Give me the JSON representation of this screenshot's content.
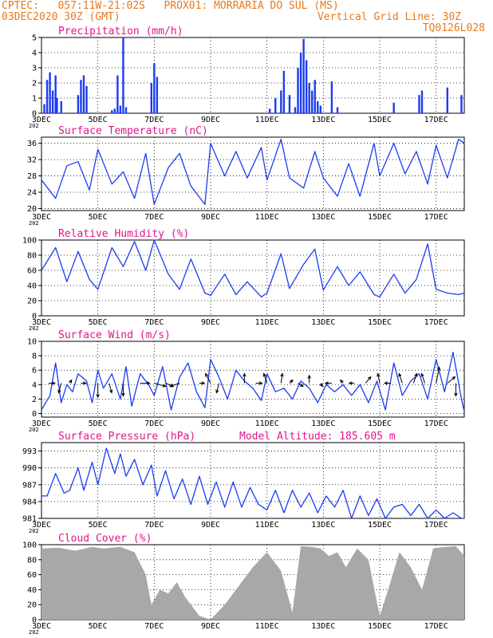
{
  "header": {
    "line1": "CPTEC:   057:11W-21:02S   PROX01: MORRARIA DO SUL (MS)",
    "line2_left": "03DEC2020 30Z (GMT)",
    "line2_right": "Vertical Grid Line: 30Z",
    "line3_right": "TQ0126L028"
  },
  "colors": {
    "header": "#e8791b",
    "title": "#e0158c",
    "series": "#1c3cf0",
    "cloud": "#a8a8a8",
    "arrow": "#000000"
  },
  "x_axis": {
    "tick_labels": [
      "3DEC",
      "5DEC",
      "7DEC",
      "9DEC",
      "11DEC",
      "13DEC",
      "15DEC",
      "17DEC"
    ],
    "tick_days": [
      3,
      5,
      7,
      9,
      11,
      13,
      15,
      17
    ],
    "range_days": [
      3,
      18
    ],
    "year_fragment": "202"
  },
  "chart_data": [
    {
      "type": "bar",
      "title": "Precipitation (mm/h)",
      "ylim": [
        0,
        5
      ],
      "yticks": [
        "0",
        "1",
        "2",
        "3",
        "4",
        "5"
      ],
      "ytick_values": [
        0,
        1,
        2,
        3,
        4,
        5
      ],
      "grid": true,
      "x": [
        3.1,
        3.2,
        3.3,
        3.4,
        3.5,
        3.55,
        3.7,
        4.3,
        4.4,
        4.5,
        4.6,
        5.5,
        5.6,
        5.7,
        5.8,
        5.9,
        6.0,
        6.9,
        7.0,
        7.1,
        11.1,
        11.3,
        11.5,
        11.6,
        11.8,
        12.0,
        12.1,
        12.2,
        12.3,
        12.4,
        12.5,
        12.6,
        12.7,
        12.8,
        12.9,
        13.3,
        13.5,
        15.5,
        16.4,
        16.5,
        17.4,
        17.9
      ],
      "y": [
        0.6,
        2.2,
        2.7,
        1.5,
        2.5,
        1.0,
        0.8,
        1.2,
        2.2,
        2.5,
        1.8,
        0.2,
        0.3,
        2.5,
        0.5,
        5.0,
        0.4,
        2.0,
        3.3,
        2.4,
        0.3,
        1.0,
        1.5,
        2.8,
        1.2,
        0.4,
        3.0,
        4.0,
        4.9,
        3.5,
        2.0,
        1.5,
        2.2,
        0.8,
        0.5,
        2.1,
        0.4,
        0.7,
        1.2,
        1.5,
        1.7,
        1.2
      ]
    },
    {
      "type": "line",
      "title": "Surface Temperature (nC)",
      "ylim": [
        19.5,
        37.5
      ],
      "yticks": [
        "20",
        "24",
        "28",
        "32",
        "36"
      ],
      "ytick_values": [
        20,
        24,
        28,
        32,
        36
      ],
      "grid": true,
      "series": [
        {
          "x": [
            3.0,
            3.5,
            3.9,
            4.3,
            4.7,
            5.0,
            5.5,
            5.9,
            6.3,
            6.7,
            7.0,
            7.5,
            7.9,
            8.3,
            8.8,
            9.0,
            9.5,
            9.9,
            10.3,
            10.8,
            11.0,
            11.5,
            11.8,
            12.3,
            12.7,
            13.0,
            13.5,
            13.9,
            14.3,
            14.8,
            15.0,
            15.5,
            15.9,
            16.3,
            16.7,
            17.0,
            17.4,
            17.8,
            18.0
          ],
          "y": [
            27,
            22.5,
            30.5,
            31.5,
            24.5,
            34.5,
            26,
            29,
            22.5,
            33.5,
            21,
            30,
            33.5,
            25.5,
            21,
            36,
            28,
            34,
            27.5,
            35,
            27,
            37,
            27.5,
            25,
            34,
            27.5,
            23,
            31,
            23,
            36,
            28,
            36,
            28.5,
            34,
            26,
            35.5,
            27.5,
            37,
            36
          ]
        }
      ]
    },
    {
      "type": "line",
      "title": "Relative Humidity (%)",
      "ylim": [
        0,
        100
      ],
      "yticks": [
        "0",
        "20",
        "40",
        "60",
        "80",
        "100"
      ],
      "ytick_values": [
        0,
        20,
        40,
        60,
        80,
        100
      ],
      "grid": true,
      "series": [
        {
          "x": [
            3.0,
            3.5,
            3.9,
            4.3,
            4.7,
            5.0,
            5.5,
            5.9,
            6.3,
            6.7,
            7.0,
            7.5,
            7.9,
            8.3,
            8.8,
            9.0,
            9.5,
            9.9,
            10.3,
            10.8,
            11.0,
            11.5,
            11.8,
            12.3,
            12.7,
            13.0,
            13.5,
            13.9,
            14.3,
            14.8,
            15.0,
            15.5,
            15.9,
            16.3,
            16.7,
            17.0,
            17.4,
            17.8,
            18.0
          ],
          "y": [
            60,
            90,
            45,
            85,
            48,
            35,
            90,
            65,
            98,
            60,
            100,
            55,
            35,
            75,
            30,
            27,
            55,
            28,
            45,
            25,
            30,
            82,
            36,
            68,
            88,
            34,
            65,
            40,
            58,
            28,
            25,
            55,
            30,
            48,
            95,
            35,
            30,
            28,
            30
          ]
        }
      ]
    },
    {
      "type": "line",
      "title": "Surface Wind (m/s)",
      "ylim": [
        -0.5,
        10
      ],
      "yticks": [
        "0",
        "2",
        "4",
        "6",
        "8",
        "10"
      ],
      "ytick_values": [
        0,
        2,
        4,
        6,
        8,
        10
      ],
      "grid": true,
      "series": [
        {
          "x": [
            3.0,
            3.3,
            3.5,
            3.7,
            3.9,
            4.1,
            4.3,
            4.6,
            4.8,
            5.0,
            5.2,
            5.5,
            5.8,
            6.0,
            6.2,
            6.5,
            6.8,
            7.0,
            7.3,
            7.6,
            7.9,
            8.2,
            8.5,
            8.8,
            9.0,
            9.3,
            9.6,
            9.9,
            10.2,
            10.5,
            10.8,
            11.0,
            11.3,
            11.6,
            11.9,
            12.2,
            12.5,
            12.8,
            13.1,
            13.4,
            13.7,
            14.0,
            14.3,
            14.6,
            14.9,
            15.2,
            15.5,
            15.8,
            16.1,
            16.4,
            16.7,
            17.0,
            17.3,
            17.6,
            17.9,
            18.0
          ],
          "y": [
            0.5,
            2.5,
            7.0,
            1.5,
            4.0,
            3.0,
            5.5,
            4.5,
            1.5,
            6.0,
            3.5,
            5.5,
            2.0,
            6.5,
            1.0,
            5.5,
            4.0,
            2.5,
            6.5,
            0.5,
            5.0,
            7.0,
            3.0,
            0.8,
            7.5,
            5.0,
            2.0,
            6.0,
            4.5,
            3.5,
            1.8,
            5.5,
            3.0,
            3.5,
            2.0,
            4.5,
            3.5,
            1.5,
            4.0,
            3.0,
            4.0,
            2.5,
            4.0,
            1.5,
            4.5,
            0.5,
            7.0,
            2.5,
            4.5,
            5.5,
            2.0,
            7.5,
            3.0,
            8.5,
            2.0,
            0.3
          ]
        }
      ],
      "vectors": {
        "x": [
          3.25,
          3.7,
          4.0,
          4.4,
          5.0,
          5.4,
          5.9,
          6.5,
          7.0,
          7.4,
          7.9,
          8.6,
          9.0,
          9.3,
          10.2,
          10.6,
          11.0,
          11.5,
          11.8,
          12.1,
          12.5,
          12.9,
          13.3,
          13.7,
          14.1,
          14.5,
          15.0,
          15.4,
          15.8,
          16.2,
          16.6,
          17.0,
          17.4,
          17.7
        ],
        "u": [
          1.0,
          -0.4,
          0.3,
          0.8,
          0,
          0.4,
          0,
          1.5,
          1.8,
          1.2,
          -1.5,
          0.8,
          -0.8,
          -0.4,
          0,
          1.0,
          -0.5,
          0.2,
          0.5,
          0.8,
          0,
          0.3,
          -1.0,
          -0.4,
          -0.8,
          0.8,
          -0.3,
          -1.0,
          -0.5,
          0.5,
          -0.5,
          0.5,
          1.2,
          0
        ],
        "v": [
          0,
          -1.5,
          0.5,
          0,
          -2.2,
          -1.5,
          -2.0,
          0,
          -0.5,
          -0.5,
          -0.5,
          0,
          1.5,
          -1.5,
          1.5,
          0,
          1.5,
          1.5,
          0.5,
          -0.5,
          1.2,
          -0.5,
          0,
          0.5,
          0,
          1.0,
          1.5,
          0,
          1.5,
          1.5,
          1.5,
          2.5,
          1.0,
          -2.0
        ]
      }
    },
    {
      "type": "line",
      "title": "Surface Pressure (hPa)",
      "subtitle": "Model Altitude: 185.605 m",
      "ylim": [
        981,
        994.5
      ],
      "yticks": [
        "981",
        "984",
        "987",
        "990",
        "993"
      ],
      "ytick_values": [
        981,
        984,
        987,
        990,
        993
      ],
      "grid": true,
      "series": [
        {
          "x": [
            3.0,
            3.2,
            3.5,
            3.8,
            4.0,
            4.3,
            4.5,
            4.8,
            5.0,
            5.3,
            5.6,
            5.8,
            6.0,
            6.3,
            6.6,
            6.9,
            7.1,
            7.4,
            7.7,
            8.0,
            8.3,
            8.6,
            8.9,
            9.2,
            9.5,
            9.8,
            10.1,
            10.4,
            10.7,
            11.0,
            11.3,
            11.6,
            11.9,
            12.2,
            12.5,
            12.8,
            13.1,
            13.4,
            13.7,
            14.0,
            14.3,
            14.6,
            14.9,
            15.2,
            15.5,
            15.8,
            16.1,
            16.4,
            16.7,
            17.0,
            17.3,
            17.6,
            17.9,
            18.0
          ],
          "y": [
            985,
            985,
            989,
            985.5,
            986,
            990,
            986,
            991,
            987,
            993.5,
            989,
            992.5,
            988.5,
            991.5,
            987,
            990.5,
            985,
            989.5,
            984.5,
            988,
            983.5,
            988.5,
            983.5,
            987.5,
            983,
            987.5,
            983,
            986.5,
            983.5,
            982.5,
            986,
            982,
            986,
            983,
            985.5,
            982,
            985,
            983,
            986,
            981,
            985,
            981.5,
            984.5,
            981,
            983,
            983.5,
            981.5,
            983.5,
            981,
            982.5,
            981,
            982,
            980.5,
            980.5
          ]
        }
      ]
    },
    {
      "type": "area",
      "title": "Cloud Cover (%)",
      "ylim": [
        0,
        100
      ],
      "yticks": [
        "0",
        "20",
        "40",
        "60",
        "80",
        "100"
      ],
      "ytick_values": [
        0,
        20,
        40,
        60,
        80,
        100
      ],
      "grid": true,
      "x": [
        3.0,
        3.6,
        4.2,
        4.8,
        5.2,
        5.8,
        6.3,
        6.7,
        6.9,
        7.2,
        7.5,
        7.8,
        8.1,
        8.6,
        9.0,
        9.5,
        10.0,
        10.5,
        11.0,
        11.5,
        11.9,
        12.2,
        12.6,
        12.9,
        13.2,
        13.5,
        13.8,
        14.2,
        14.6,
        15.0,
        15.3,
        15.7,
        16.1,
        16.5,
        16.9,
        17.3,
        17.7,
        18.0
      ],
      "y": [
        95,
        96,
        92,
        97,
        95,
        97,
        90,
        60,
        20,
        40,
        35,
        50,
        30,
        5,
        0,
        20,
        45,
        70,
        90,
        65,
        10,
        98,
        97,
        95,
        85,
        90,
        70,
        95,
        80,
        5,
        40,
        90,
        70,
        40,
        95,
        97,
        98,
        85
      ]
    }
  ]
}
